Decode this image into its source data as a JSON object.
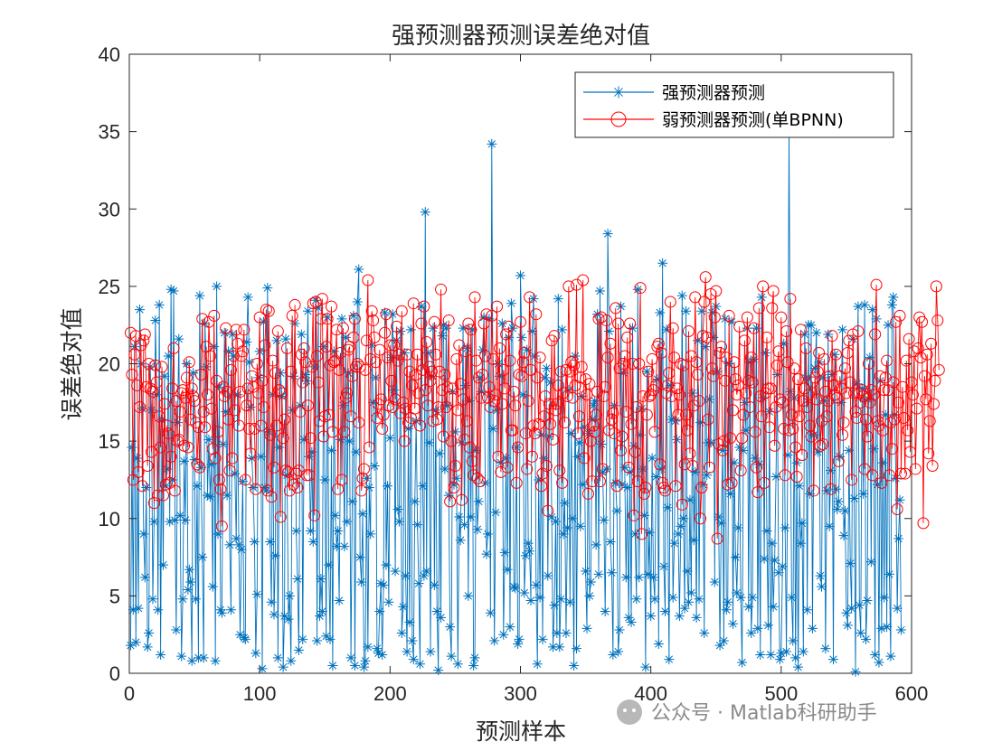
{
  "watermark": {
    "text": "公众号 · Matlab科研助手"
  },
  "chart_data": {
    "type": "line",
    "title": "强预测器预测误差绝对值",
    "xlabel": "预测样本",
    "ylabel": "误差绝对值",
    "xlim": [
      0,
      600
    ],
    "ylim": [
      0,
      40
    ],
    "xticks": [
      0,
      100,
      200,
      300,
      400,
      500,
      600
    ],
    "yticks": [
      0,
      5,
      10,
      15,
      20,
      25,
      30,
      35,
      40
    ],
    "grid": false,
    "legend_position": "top-right",
    "n_samples": 600,
    "series": [
      {
        "name": "强预测器预测",
        "color": "#0072BD",
        "marker": "asterisk",
        "values": [
          1.8,
          14.6,
          4.1,
          21.1,
          2.0,
          13.9,
          4.2,
          23.5,
          20.0,
          17.1,
          9.0,
          6.2,
          12.0,
          1.7,
          2.6,
          19.8,
          17.0,
          4.8,
          9.8,
          22.8,
          18.0,
          4.1,
          23.8,
          1.2,
          16.4,
          7.0,
          19.2,
          12.1,
          13.2,
          20.5,
          9.8,
          24.8,
          12.5,
          24.7,
          9.9,
          2.8,
          16.2,
          21.6,
          10.2,
          1.1,
          4.8,
          13.7,
          9.9,
          20.0,
          5.4,
          6.7,
          5.9,
          0.8,
          19.4,
          13.8,
          4.8,
          12.1,
          1.0,
          24.4,
          13.3,
          7.5,
          1.0,
          22.6,
          19.8,
          11.5,
          15.1,
          11.4,
          13.5,
          5.6,
          21.1,
          0.8,
          25.0,
          9.0,
          18.5,
          4.1,
          3.9,
          14.8,
          22.0,
          16.9,
          11.5,
          20.8,
          8.3,
          4.1,
          21.9,
          20.5,
          12.9,
          8.7,
          18.0,
          8.3,
          2.5,
          8.0,
          12.4,
          2.3,
          2.2,
          21.4,
          24.3,
          20.1,
          17.2,
          13.9,
          12.0,
          8.5,
          1.3,
          5.1,
          19.1,
          20.8,
          14.0,
          0.3,
          22.7,
          12.0,
          11.8,
          24.9,
          15.6,
          8.5,
          4.6,
          18.0,
          3.8,
          7.6,
          21.5,
          1.0,
          14.6,
          19.4,
          17.9,
          0.4,
          3.7,
          21.6,
          12.8,
          3.5,
          5.0,
          0.8,
          17.0,
          19.2,
          22.6,
          9.2,
          6.1,
          1.5,
          17.3,
          21.9,
          2.2,
          15.1,
          19.3,
          18.9,
          23.4,
          14.0,
          9.2,
          14.3,
          8.5,
          19.8,
          24.1,
          2.1,
          23.6,
          3.7,
          6.1,
          4.0,
          21.1,
          12.5,
          2.4,
          23.0,
          7.0,
          2.2,
          14.4,
          0.5,
          20.8,
          10.2,
          8.2,
          9.2,
          4.7,
          15.1,
          22.9,
          17.3,
          8.2,
          21.7,
          9.8,
          19.4,
          15.0,
          1.0,
          11.1,
          23.1,
          0.5,
          14.3,
          24.0,
          26.1,
          7.5,
          5.9,
          10.3,
          0.4,
          0.8,
          12.6,
          1.7,
          12.0,
          9.0,
          21.2,
          17.5,
          13.4,
          19.1,
          1.6,
          1.3,
          4.0,
          5.8,
          1.2,
          5.7,
          23.3,
          7.0,
          12.1,
          4.6,
          15.2,
          20.4,
          23.2,
          18.3,
          6.6,
          21.5,
          10.6,
          9.8,
          22.1,
          2.6,
          4.3,
          20.7,
          6.3,
          1.4,
          15.8,
          3.3,
          22.2,
          2.1,
          0.9,
          11.1,
          16.3,
          9.6,
          5.8,
          0.6,
          23.7,
          12.1,
          6.3,
          29.8,
          6.6,
          20.7,
          14.9,
          1.4,
          19.2,
          22.3,
          5.7,
          17.0,
          4.0,
          0.2,
          14.2,
          3.6,
          21.8,
          22.5,
          13.2,
          22.3,
          17.3,
          11.5,
          3.0,
          1.1,
          18.2,
          12.2,
          15.6,
          12.6,
          0.6,
          10.1,
          8.6,
          14.9,
          22.3,
          9.6,
          18.6,
          21.0,
          5.0,
          17.6,
          10.1,
          22.2,
          0.5,
          1.0,
          14.4,
          9.3,
          11.1,
          19.1,
          18.2,
          20.9,
          23.0,
          12.3,
          7.7,
          9.0,
          22.9,
          3.9,
          34.2,
          15.8,
          2.1,
          10.4,
          17.0,
          20.0,
          19.2,
          13.6,
          22.6,
          2.5,
          7.8,
          13.9,
          6.7,
          21.7,
          3.0,
          23.9,
          22.3,
          5.6,
          5.5,
          14.6,
          1.9,
          2.2,
          25.7,
          21.7,
          18.0,
          5.2,
          7.6,
          20.9,
          8.4,
          7.9,
          4.7,
          22.1,
          24.2,
          20.5,
          5.7,
          0.6,
          12.5,
          4.9,
          15.4,
          2.2,
          13.9,
          19.1,
          19.7,
          6.3,
          15.3,
          18.8,
          10.1,
          1.7,
          4.4,
          9.8,
          2.6,
          24.2,
          1.7,
          4.8,
          22.2,
          9.0,
          11.0,
          2.6,
          9.4,
          18.3,
          4.6,
          15.5,
          10.0,
          0.5,
          20.5,
          1.6,
          14.0,
          14.9,
          9.5,
          17.9,
          12.2,
          15.9,
          6.6,
          2.9,
          15.5,
          5.0,
          5.9,
          16.4,
          17.3,
          17.6,
          8.3,
          23.2,
          6.4,
          24.7,
          14.8,
          13.0,
          9.9,
          4.0,
          13.2,
          28.4,
          22.1,
          8.5,
          6.5,
          1.2,
          17.3,
          12.3,
          10.5,
          1.4,
          2.8,
          23.7,
          12.2,
          19.4,
          13.3,
          6.2,
          12.0,
          3.6,
          13.0,
          3.3,
          22.3,
          14.7,
          9.0,
          4.8,
          24.8,
          6.2,
          15.4,
          17.1,
          13.2,
          10.2,
          0.4,
          19.5,
          6.4,
          9.1,
          3.7,
          13.9,
          6.2,
          4.8,
          12.7,
          19.0,
          1.9,
          23.3,
          13.2,
          26.5,
          6.9,
          4.0,
          22.2,
          10.7,
          0.9,
          18.6,
          16.4,
          4.9,
          8.4,
          16.3,
          15.1,
          9.0,
          3.7,
          9.5,
          24.4,
          10.0,
          4.2,
          23.4,
          6.6,
          4.6,
          11.2,
          5.2,
          18.1,
          8.6,
          13.0,
          3.6,
          21.5,
          4.8,
          16.2,
          23.4,
          12.2,
          2.6,
          21.1,
          12.8,
          14.9,
          17.7,
          14.9,
          23.3,
          21.7,
          5.9,
          23.7,
          19.5,
          10.1,
          1.8,
          9.7,
          14.4,
          2.1,
          22.9,
          4.1,
          4.6,
          20.0,
          11.6,
          22.7,
          3.2,
          13.6,
          7.5,
          5.2,
          9.4,
          14.6,
          4.9,
          0.7,
          14.4,
          17.5,
          15.7,
          22.3,
          4.3,
          20.1,
          2.6,
          4.9,
          20.3,
          13.9,
          22.3,
          2.9,
          13.5,
          1.2,
          24.3,
          17.8,
          7.4,
          20.7,
          9.2,
          3.1,
          16.9,
          1.2,
          8.4,
          4.3,
          7.3,
          12.7,
          19.3,
          6.5,
          0.9,
          1.3,
          6.9,
          21.3,
          9.4,
          1.4,
          14.1,
          35.0,
          18.2,
          4.9,
          2.1,
          17.8,
          1.0,
          13.6,
          0.4,
          12.1,
          8.4,
          9.7,
          1.4,
          21.9,
          19.1,
          4.1,
          22.5,
          11.6,
          22.5,
          2.9,
          15.4,
          19.7,
          22.0,
          14.3,
          20.1,
          6.3,
          5.6,
          19.1,
          17.6,
          1.6,
          11.8,
          21.9,
          9.5,
          13.1,
          19.3,
          0.9,
          20.6,
          11.9,
          10.6,
          11.1,
          14.0,
          17.5,
          22.2,
          8.9,
          10.5,
          3.9,
          3.1,
          14.4,
          7.1,
          4.2,
          21.6,
          11.3,
          0.1,
          18.7,
          23.7,
          4.4,
          2.6,
          18.4,
          11.6,
          23.8,
          2.2,
          4.7,
          17.7,
          20.4,
          7.2,
          23.5,
          14.5,
          1.2,
          22.9,
          12.2,
          0.7,
          18.9,
          2.9,
          13.6,
          4.9,
          16.7,
          3.0,
          22.5,
          6.4,
          1.1,
          23.8,
          24.3,
          16.7,
          12.6,
          4.2,
          8.7,
          11.2,
          2.8
        ]
      },
      {
        "name": "弱预测器预测(单BPNN)",
        "color": "#FF0000",
        "marker": "circle",
        "values": [
          22.0,
          19.3,
          12.5,
          20.6,
          21.8,
          18.6,
          13.0,
          17.2,
          21.2,
          12.1,
          21.5,
          21.9,
          18.5,
          13.4,
          20.0,
          18.4,
          14.3,
          18.2,
          11.0,
          19.9,
          18.8,
          11.5,
          16.6,
          14.6,
          19.8,
          11.5,
          17.4,
          12.2,
          16.0,
          15.5,
          12.3,
          14.0,
          18.4,
          21.0,
          11.8,
          17.6,
          15.0,
          15.1,
          16.9,
          18.1,
          18.3,
          14.7,
          17.8,
          19.1,
          14.6,
          20.1,
          16.4,
          18.4,
          17.9,
          17.6,
          16.2,
          13.5,
          15.9,
          13.3,
          19.3,
          22.9,
          16.9,
          15.9,
          21.1,
          18.0,
          22.7,
          20.5,
          17.1,
          14.5,
          23.1,
          13.9,
          18.9,
          15.6,
          12.5,
          11.9,
          9.5,
          18.5,
          17.9,
          22.3,
          18.2,
          16.4,
          13.1,
          19.6,
          13.9,
          20.5,
          17.0,
          22.2,
          21.3,
          16.0,
          18.2,
          20.5,
          20.8,
          22.2,
          12.5,
          17.3,
          18.4,
          15.8,
          14.2,
          19.2,
          18.5,
          15.8,
          11.9,
          20.0,
          18.1,
          23.0,
          16.0,
          18.9,
          17.2,
          21.2,
          23.5,
          11.8,
          23.4,
          15.4,
          11.4,
          20.2,
          13.3,
          19.4,
          16.0,
          22.1,
          18.3,
          10.1,
          18.1,
          15.2,
          16.4,
          13.1,
          21.0,
          13.0,
          11.8,
          19.5,
          23.1,
          12.2,
          23.8,
          12.9,
          12.0,
          13.1,
          16.9,
          20.6,
          18.8,
          21.0,
          20.1,
          12.8,
          17.3,
          12.8,
          15.2,
          19.8,
          23.9,
          10.2,
          24.0,
          20.5,
          18.8,
          16.3,
          22.9,
          24.2,
          15.3,
          16.6,
          21.1,
          22.9,
          16.7,
          19.9,
          23.7,
          15.6,
          20.1,
          20.2,
          22.2,
          11.9,
          19.6,
          20.7,
          12.5,
          22.3,
          15.6,
          17.8,
          18.1,
          20.9,
          21.1,
          16.6,
          19.2,
          21.7,
          22.9,
          19.8,
          20.0,
          16.2,
          19.8,
          11.8,
          12.6,
          13.2,
          19.6,
          21.5,
          25.4,
          14.6,
          20.3,
          23.4,
          22.8,
          21.7,
          20.1,
          16.5,
          17.4,
          20.9,
          17.7,
          15.8,
          16.7,
          22.0,
          23.2,
          20.4,
          17.3,
          21.2,
          18.9,
          17.2,
          21.2,
          17.7,
          22.4,
          20.2,
          20.6,
          16.8,
          23.4,
          17.5,
          15.0,
          17.1,
          20.6,
          16.2,
          19.5,
          16.5,
          18.6,
          23.9,
          17.1,
          19.3,
          20.6,
          18.1,
          16.0,
          22.6,
          19.6,
          23.7,
          18.3,
          21.4,
          17.3,
          19.8,
          18.9,
          19.5,
          16.3,
          22.7,
          20.6,
          16.4,
          17.2,
          19.5,
          24.8,
          18.3,
          15.3,
          19.3,
          17.2,
          18.5,
          22.8,
          11.1,
          15.0,
          18.4,
          12.0,
          13.4,
          20.3,
          17.0,
          21.2,
          18.7,
          11.2,
          17.7,
          15.1,
          20.8,
          16.3,
          22.6,
          14.6,
          22.2,
          13.7,
          12.8,
          24.3,
          20.2,
          12.6,
          19.1,
          12.4,
          17.8,
          19.3,
          22.6,
          20.5,
          23.2,
          17.8,
          18.5,
          17.2,
          23.1,
          20.3,
          17.6,
          18.0,
          23.7,
          14.0,
          21.0,
          13.0,
          17.4,
          19.6,
          18.4,
          21.9,
          13.3,
          22.4,
          20.2,
          15.7,
          15.7,
          18.2,
          17.3,
          12.3,
          14.6,
          19.3,
          22.7,
          19.2,
          20.1,
          20.7,
          15.5,
          13.2,
          17.6,
          24.3,
          19.6,
          14.0,
          16.0,
          15.5,
          23.2,
          19.1,
          16.1,
          20.4,
          12.1,
          12.9,
          16.6,
          17.9,
          13.4,
          10.5,
          17.4,
          16.1,
          21.5,
          15.1,
          21.8,
          17.0,
          17.4,
          18.6,
          13.1,
          19.5,
          12.3,
          18.1,
          16.2,
          19.6,
          17.9,
          25.0,
          19.5,
          20.1,
          17.8,
          19.9,
          18.6,
          25.1,
          15.5,
          16.6,
          19.1,
          19.8,
          25.4,
          13.9,
          19.0,
          18.0,
          11.6,
          18.7,
          15.0,
          12.4,
          16.0,
          15.6,
          16.7,
          18.2,
          22.9,
          12.4,
          23.0,
          13.2,
          17.9,
          18.5,
          22.8,
          20.4,
          15.7,
          21.3,
          16.4,
          16.8,
          15.5,
          23.6,
          12.1,
          22.6,
          19.7,
          14.4,
          15.3,
          20.0,
          20.5,
          16.9,
          21.7,
          13.3,
          22.6,
          16.1,
          20.0,
          10.2,
          14.3,
          17.2,
          12.4,
          20.0,
          24.9,
          9.0,
          17.9,
          11.6,
          12.0,
          16.7,
          19.5,
          17.9,
          18.0,
          20.3,
          18.3,
          15.6,
          18.6,
          21.1,
          21.3,
          13.5,
          20.7,
          12.3,
          12.0,
          11.8,
          18.1,
          18.6,
          19.4,
          24.0,
          17.9,
          22.3,
          20.4,
          12.1,
          18.4,
          16.7,
          18.0,
          20.0,
          10.9,
          19.9,
          13.5,
          16.7,
          15.7,
          22.1,
          14.2,
          20.5,
          13.4,
          17.3,
          24.3,
          20.1,
          19.3,
          17.6,
          10.0,
          12.0,
          21.8,
          24.0,
          25.6,
          21.7,
          16.4,
          13.3,
          24.5,
          19.7,
          19.2,
          23.0,
          24.7,
          8.7,
          14.8,
          20.7,
          21.1,
          14.4,
          15.0,
          18.9,
          20.4,
          12.2,
          23.1,
          15.2,
          12.3,
          17.0,
          20.1,
          19.0,
          18.0,
          18.6,
          22.4,
          13.1,
          15.2,
          16.7,
          21.5,
          18.1,
          23.0,
          18.9,
          17.2,
          20.4,
          18.8,
          22.3,
          15.6,
          13.3,
          11.7,
          23.6,
          17.9,
          16.6,
          25.0,
          12.3,
          18.1,
          21.7,
          18.4,
          15.9,
          18.4,
          23.6,
          24.7,
          14.7,
          17.2,
          19.9,
          20.8,
          17.7,
          23.0,
          17.5,
          15.8,
          12.8,
          22.1,
          20.1,
          15.7,
          24.2,
          16.7,
          15.8,
          19.7,
          14.6,
          12.7,
          19.0,
          16.6,
          22.2,
          14.1,
          17.6,
          18.4,
          21.0,
          17.2,
          18.0,
          16.0,
          15.3,
          18.8,
          11.8,
          19.1,
          17.7,
          19.5,
          20.7,
          14.7,
          16.3,
          14.8,
          20.3,
          18.2,
          16.6,
          17.6,
          19.2,
          11.9,
          21.8,
          18.6,
          18.0,
          20.6,
          17.8,
          13.7,
          19.2,
          18.4,
          15.4,
          16.2,
          19.7,
          18.1,
          20.7,
          21.5,
          18.8,
          12.5,
          21.9,
          18.1,
          16.9,
          16.5,
          22.1,
          18.1,
          17.5,
          18.3,
          17.9,
          13.2,
          16.4,
          15.3,
          20.0,
          17.5,
          18.3,
          12.8,
          18.0,
          21.9,
          25.1,
          16.3,
          16.0,
          19.2,
          12.3,
          15.7,
          18.3,
          19.1,
          20.2,
          18.3,
          12.8,
          16.2,
          14.5,
          18.8,
          16.4,
          22.7,
          10.6,
          17.5,
          23.1,
          12.9,
          18.5,
          16.5,
          12.9,
          20.2,
          15.7,
          21.6,
          14.3,
          18.8,
          18.0,
          20.8,
          13.2,
          17.1,
          21.0,
          23.0,
          20.4,
          22.7,
          9.7,
          19.2,
          17.7,
          20.6,
          14.2,
          16.3,
          21.3,
          13.4,
          17.4,
          18.9,
          25.0,
          22.8,
          19.6
        ]
      }
    ]
  }
}
